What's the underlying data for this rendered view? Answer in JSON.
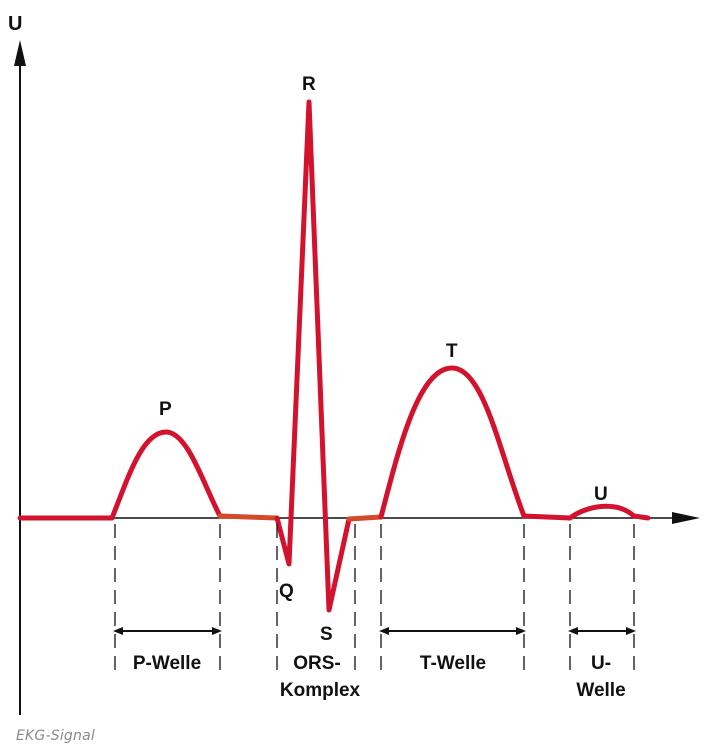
{
  "diagram": {
    "axis_label": "U",
    "wave_labels": {
      "p": "P",
      "q": "Q",
      "r": "R",
      "s": "S",
      "t": "T",
      "u": "U"
    },
    "segments": {
      "p_label": "P-Welle",
      "qrs_label_line1": "ORS-",
      "qrs_label_line2": "Komplex",
      "t_label": "T-Welle",
      "u_label_line1": "U-",
      "u_label_line2": "Welle"
    },
    "colors": {
      "signal": "#d3122e",
      "baseline_segment": "#d24a2a",
      "axis": "#111111"
    },
    "icons": {
      "arrow": "arrow-head-icon"
    }
  },
  "caption": "EKG-Signal"
}
